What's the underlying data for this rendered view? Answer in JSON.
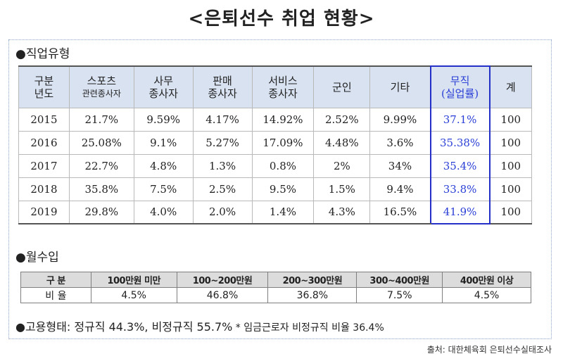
{
  "title": "<은퇴선수 취업 현황>",
  "job_section": {
    "label": "●직업유형",
    "header": {
      "corner_line1": "구분",
      "corner_line2": "년도",
      "cols": [
        {
          "l1": "스포츠",
          "l2": "관련종사자"
        },
        {
          "l1": "사무",
          "l2": "종사자"
        },
        {
          "l1": "판매",
          "l2": "종사자"
        },
        {
          "l1": "서비스",
          "l2": "종사자"
        },
        {
          "l1": "군인",
          "l2": ""
        },
        {
          "l1": "기타",
          "l2": ""
        },
        {
          "l1": "무직",
          "l2": "(실업률)"
        },
        {
          "l1": "계",
          "l2": ""
        }
      ]
    },
    "rows": [
      [
        "2015",
        "21.7%",
        "9.59%",
        "4.17%",
        "14.92%",
        "2.52%",
        "9.99%",
        "37.1%",
        "100"
      ],
      [
        "2016",
        "25.08%",
        "9.1%",
        "5.27%",
        "17.09%",
        "4.48%",
        "3.6%",
        "35.38%",
        "100"
      ],
      [
        "2017",
        "22.7%",
        "4.8%",
        "1.3%",
        "0.8%",
        "2%",
        "34%",
        "35.4%",
        "100"
      ],
      [
        "2018",
        "35.8%",
        "7.5%",
        "2.5%",
        "9.5%",
        "1.5%",
        "9.4%",
        "33.8%",
        "100"
      ],
      [
        "2019",
        "29.8%",
        "4.0%",
        "2.0%",
        "1.4%",
        "4.3%",
        "16.5%",
        "41.9%",
        "100"
      ]
    ]
  },
  "income_section": {
    "label": "●월수입",
    "header": [
      "구 분",
      "100만원 미만",
      "100~200만원",
      "200~300만원",
      "300~400만원",
      "400만원 이상"
    ],
    "row": [
      "비 율",
      "4.5%",
      "46.8%",
      "36.8%",
      "7.5%",
      "4.5%"
    ]
  },
  "employment": {
    "text": "●고용형태: 정규직 44.3%, 비정규직 55.7%",
    "note": " * 임금근로자 비정규직 비율 36.4%"
  },
  "source": "출처: 대한체육회 은퇴선수실태조사",
  "colors": {
    "unemployment_highlight": "#2a3fd6",
    "header_fill": "#d9e2f1"
  }
}
